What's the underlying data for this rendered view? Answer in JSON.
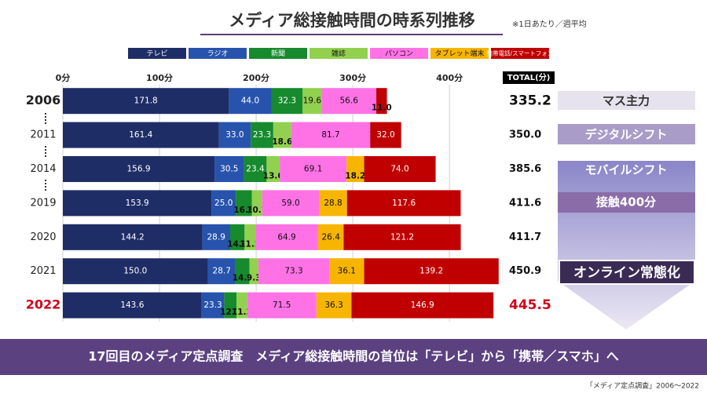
{
  "chart_data": {
    "type": "bar",
    "orientation": "horizontal",
    "stacked": true,
    "title": "メディア総接触時間の時系列推移",
    "subtitle": "※1日あたり／週平均",
    "categories": [
      "2006",
      "2011",
      "2014",
      "2019",
      "2020",
      "2021",
      "2022"
    ],
    "series": [
      {
        "name": "テレビ",
        "color": "#1f2d66",
        "values": [
          171.8,
          161.4,
          156.9,
          153.9,
          144.2,
          150.0,
          143.6
        ],
        "value_labels": [
          "171.8",
          "161.4",
          "156.9",
          "153.9",
          "144.2",
          "150.0",
          "143.6"
        ]
      },
      {
        "name": "ラジオ",
        "color": "#2753ad",
        "values": [
          44.0,
          33.0,
          30.5,
          25.0,
          28.9,
          28.7,
          23.3
        ],
        "value_labels": [
          "44.0",
          "33.0",
          "30.5",
          "25.0",
          "28.9",
          "28.7",
          "23.3"
        ]
      },
      {
        "name": "新聞",
        "color": "#168a2c",
        "values": [
          32.3,
          23.3,
          23.4,
          16.6,
          14.9,
          14.3,
          12.7
        ],
        "value_labels": [
          "32.3",
          "23.3",
          "23.4",
          "16.6",
          "14.9",
          "14.3",
          "12.7"
        ]
      },
      {
        "name": "雑誌",
        "color": "#92d050",
        "values": [
          19.6,
          18.6,
          13.6,
          10.7,
          11.2,
          9.3,
          11.2
        ],
        "value_labels": [
          "19.6",
          "18.6",
          "13.6",
          "10.7",
          "11.2",
          "9.3",
          "11.2"
        ]
      },
      {
        "name": "パソコン",
        "color": "#ff72e6",
        "values": [
          56.6,
          81.7,
          69.1,
          59.0,
          64.9,
          73.3,
          71.5
        ],
        "value_labels": [
          "56.6",
          "81.7",
          "69.1",
          "59.0",
          "64.9",
          "73.3",
          "71.5"
        ]
      },
      {
        "name": "タブレット端末",
        "color": "#f7b500",
        "values": [
          null,
          null,
          18.2,
          28.8,
          26.4,
          36.1,
          36.3
        ],
        "value_labels": [
          null,
          null,
          "18.2",
          "28.8",
          "26.4",
          "36.1",
          "36.3"
        ]
      },
      {
        "name": "携帯電話/スマートフォン",
        "color": "#c00000",
        "values": [
          11.0,
          32.0,
          74.0,
          117.6,
          121.2,
          139.2,
          146.9
        ],
        "value_labels": [
          "11.0",
          "32.0",
          "74.0",
          "117.6",
          "121.2",
          "139.2",
          "146.9"
        ]
      }
    ],
    "total_header": "TOTAL(分)",
    "totals": [
      335.2,
      350.0,
      385.6,
      411.6,
      411.7,
      450.9,
      445.5
    ],
    "total_labels": [
      "335.2",
      "350.0",
      "385.6",
      "411.6",
      "411.7",
      "450.9",
      "445.5"
    ],
    "xlim": [
      0,
      460
    ],
    "xticks": [
      {
        "value": 0,
        "label": "0分"
      },
      {
        "value": 100,
        "label": "100分"
      },
      {
        "value": 200,
        "label": "200分"
      },
      {
        "value": 300,
        "label": "300分"
      },
      {
        "value": 400,
        "label": "400分"
      }
    ],
    "grid": true,
    "annotations": {
      "stages": [
        "マス主力",
        "デジタルシフト",
        "モバイルシフト",
        "接触400分",
        "オンライン常態化"
      ],
      "banner": "17回目のメディア定点調査　メディア総接触時間の首位は「テレビ」から「携帯／スマホ」へ",
      "source": "「メディア定点調査」2006～2022"
    }
  }
}
